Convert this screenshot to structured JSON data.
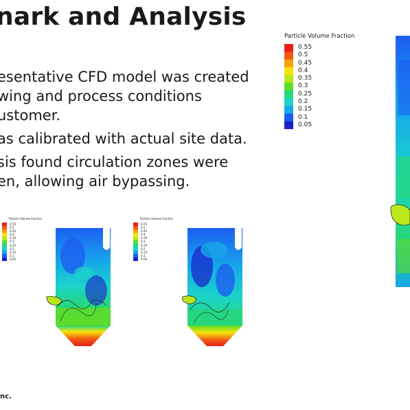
{
  "slide": {
    "title": "nark and Analysis",
    "bullets": [
      {
        "lines": [
          "esentative CFD model was created",
          "wing and process conditions",
          "ustomer."
        ]
      },
      {
        "lines": [
          "as calibrated with actual site data."
        ]
      },
      {
        "lines": [
          "sis found circulation zones were",
          "en, allowing air bypassing."
        ]
      }
    ],
    "footer": "nc."
  },
  "legend": {
    "title": "Particle Volume Fraction",
    "values": [
      "0.55",
      "0.5",
      "0.45",
      "0.4",
      "0.35",
      "0.3",
      "0.25",
      "0.2",
      "0.15",
      "0.1",
      "0.05"
    ],
    "colors": [
      "#e8201c",
      "#f25a12",
      "#f7a20c",
      "#f5e40a",
      "#b9e81a",
      "#5fdc2a",
      "#26d67c",
      "#1cd4c8",
      "#16a8ea",
      "#1d5ef0",
      "#1a1fc8"
    ]
  }
}
